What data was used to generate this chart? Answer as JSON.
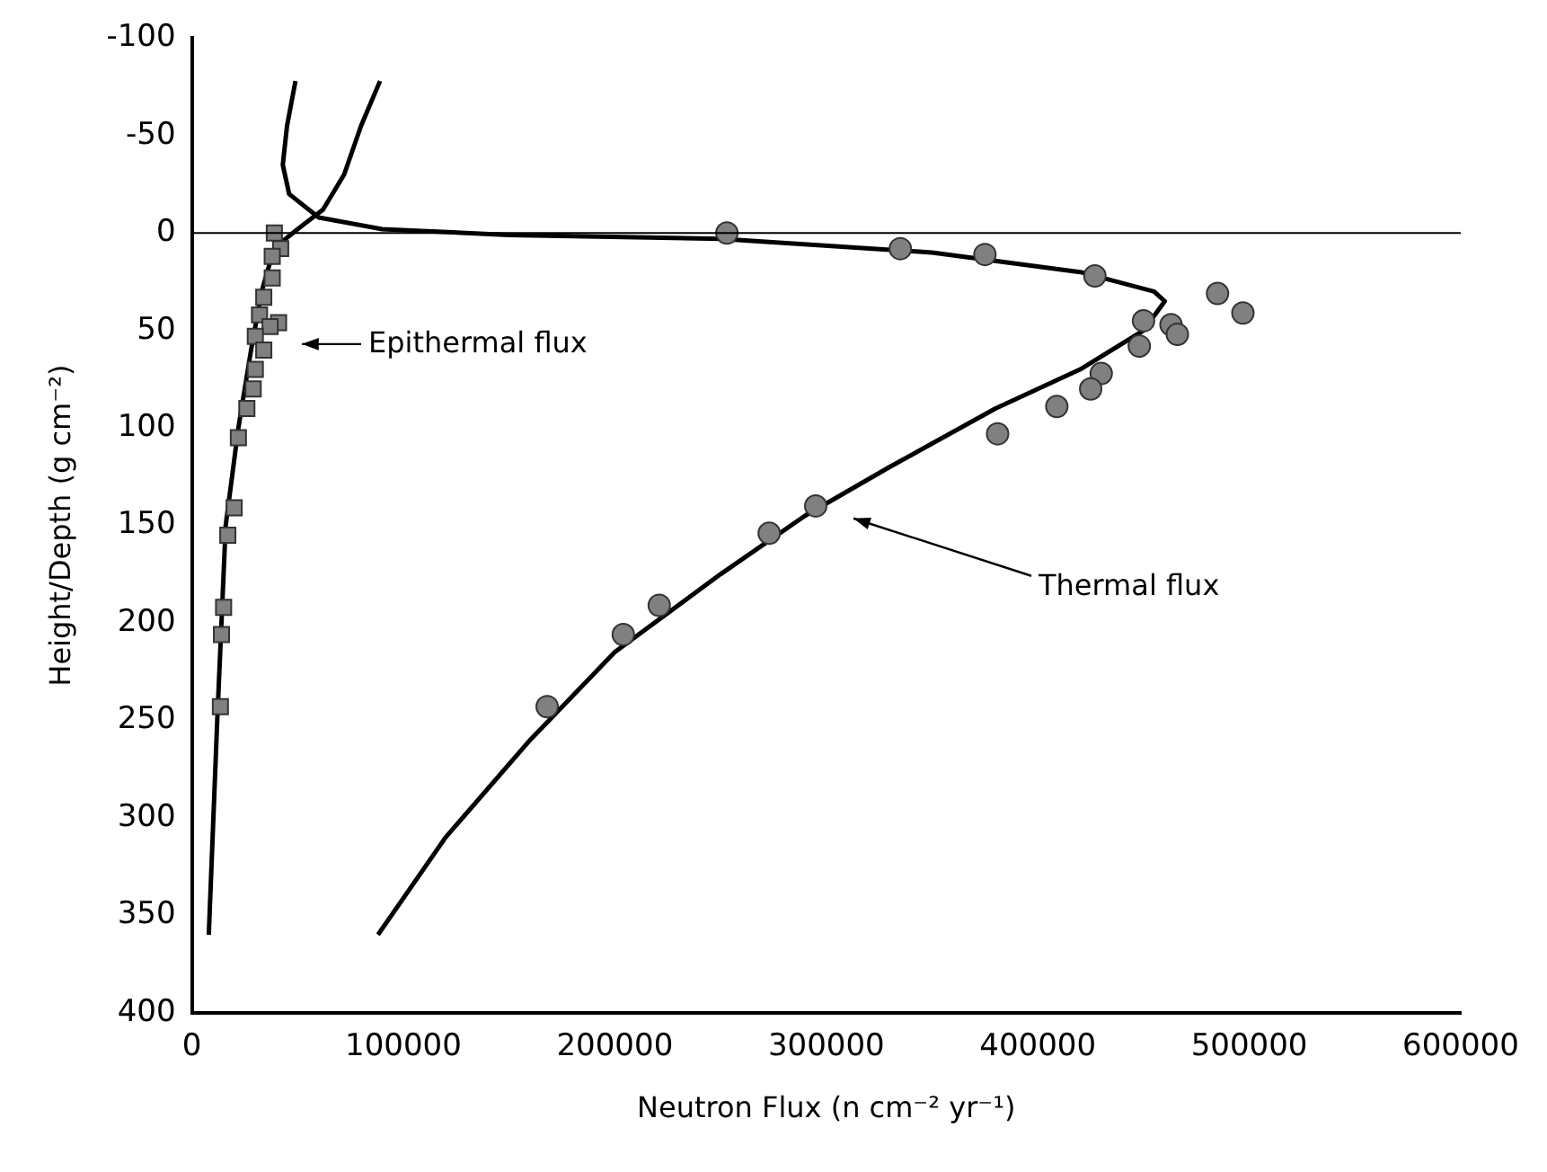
{
  "chart_data": {
    "type": "scatter",
    "xlabel": "Neutron Flux (n cm⁻² yr⁻¹)",
    "ylabel": "Height/Depth (g cm⁻²)",
    "xlim": [
      0,
      600000
    ],
    "xticks": [
      0,
      100000,
      200000,
      300000,
      400000,
      500000,
      600000
    ],
    "ylim": [
      400,
      -100
    ],
    "yticks": [
      -100,
      -50,
      0,
      50,
      100,
      150,
      200,
      250,
      300,
      350,
      400
    ],
    "grid": false,
    "legend": false,
    "ref_lines": [
      {
        "axis": "y",
        "value": 0,
        "color": "#000000"
      }
    ],
    "annotations": [
      "Epithermal flux",
      "Thermal flux"
    ],
    "series": [
      {
        "type": "scatter",
        "marker": "square",
        "color": "#808080",
        "x": [
          39000,
          42000,
          38000,
          38000,
          34000,
          32000,
          41000,
          37000,
          30000,
          34000,
          30000,
          29000,
          26000,
          22000,
          20000,
          17000,
          15000,
          14000,
          13500
        ],
        "values": [
          0,
          8,
          12,
          23,
          33,
          42,
          46,
          48,
          53,
          60,
          70,
          80,
          90,
          105,
          141,
          155,
          192,
          206,
          243
        ]
      },
      {
        "type": "scatter",
        "marker": "circle",
        "color": "#808080",
        "x": [
          253000,
          335000,
          375000,
          427000,
          485000,
          497000,
          450000,
          463000,
          466000,
          448000,
          430000,
          425000,
          409000,
          381000,
          295000,
          273000,
          221000,
          204000,
          168000
        ],
        "values": [
          0,
          8,
          11,
          22,
          31,
          41,
          45,
          47,
          52,
          58,
          72,
          80,
          89,
          103,
          140,
          154,
          191,
          206,
          243
        ]
      },
      {
        "type": "line",
        "marker": "none",
        "color": "#000000",
        "x": [
          89000,
          80000,
          72000,
          62000,
          50000,
          42000,
          37000,
          33000,
          28000,
          22000,
          16000,
          12000,
          8000
        ],
        "values": [
          -78,
          -55,
          -30,
          -12,
          -2,
          5,
          15,
          30,
          60,
          100,
          150,
          250,
          360
        ]
      },
      {
        "type": "line",
        "marker": "none",
        "color": "#000000",
        "x": [
          49000,
          45000,
          43000,
          46000,
          60000,
          90000,
          150000,
          250000,
          350000,
          420000,
          455000,
          460000,
          450000,
          420000,
          380000,
          330000,
          290000,
          250000,
          200000,
          160000,
          120000,
          88000
        ],
        "values": [
          -78,
          -55,
          -35,
          -20,
          -8,
          -2,
          1,
          3,
          10,
          20,
          30,
          35,
          50,
          70,
          90,
          120,
          145,
          175,
          215,
          260,
          310,
          360
        ]
      }
    ]
  }
}
